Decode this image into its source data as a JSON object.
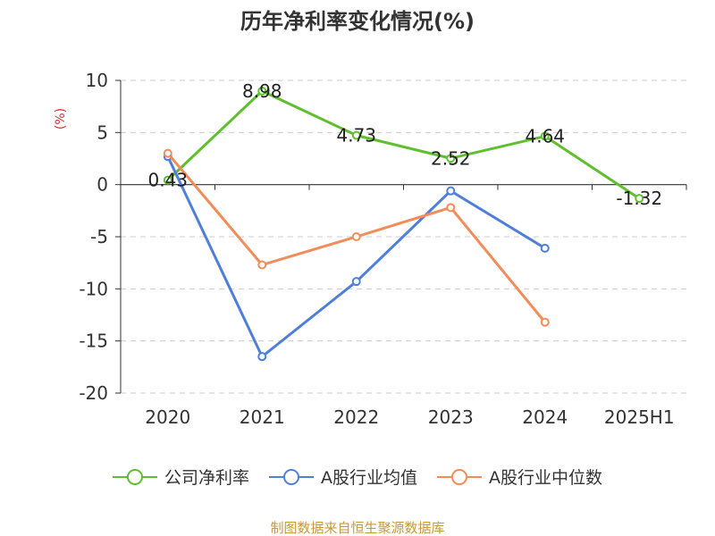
{
  "title": "历年净利率变化情况(%)",
  "unit_label": "(%)",
  "source": "制图数据来自恒生聚源数据库",
  "colors": {
    "net_margin": "#5fbf2f",
    "industry_avg": "#4f7fd9",
    "industry_median": "#f28c5a",
    "grid": "#cccccc",
    "axis": "#333333",
    "unit_label": "#d62b2b",
    "source": "#c49a3a"
  },
  "chart_data": {
    "type": "line",
    "title": "历年净利率变化情况(%)",
    "ylabel": "(%)",
    "categories": [
      "2020",
      "2021",
      "2022",
      "2023",
      "2024",
      "2025H1"
    ],
    "ylim": [
      -20,
      10
    ],
    "yticks": [
      10,
      5,
      0,
      -5,
      -10,
      -15,
      -20
    ],
    "grid": true,
    "legend_placement": "bottom",
    "series": [
      {
        "name": "公司净利率",
        "key": "net_margin",
        "values": [
          0.43,
          8.98,
          4.73,
          2.52,
          4.64,
          -1.32
        ],
        "data_labels": [
          "0.43",
          "8.98",
          "4.73",
          "2.52",
          "4.64",
          "-1.32"
        ]
      },
      {
        "name": "A股行业均值",
        "key": "industry_avg",
        "values": [
          2.7,
          -16.5,
          -9.3,
          -0.6,
          -6.1,
          null
        ]
      },
      {
        "name": "A股行业中位数",
        "key": "industry_median",
        "values": [
          3.0,
          -7.7,
          -5.0,
          -2.2,
          -13.2,
          null
        ]
      }
    ]
  }
}
